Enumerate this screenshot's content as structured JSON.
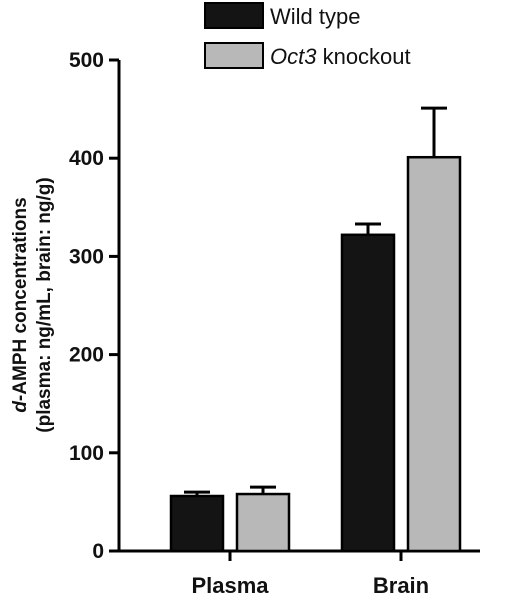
{
  "chart_data": {
    "type": "bar",
    "title": "",
    "xlabel": "",
    "ylabel_line1_prefix": "d",
    "ylabel_line1_rest": "-AMPH concentrations",
    "ylabel_line2": "(plasma: ng/mL, brain: ng/g)",
    "ylim": [
      0,
      500
    ],
    "yticks": [
      "0",
      "100",
      "200",
      "300",
      "400",
      "500"
    ],
    "ytick_values": [
      0,
      100,
      200,
      300,
      400,
      500
    ],
    "categories": [
      "Plasma",
      "Brain"
    ],
    "series": [
      {
        "legend_prefix": "",
        "legend_rest": "Wild type",
        "color": "#141414",
        "values": [
          56,
          322
        ],
        "errors": [
          4,
          11
        ]
      },
      {
        "legend_prefix": "Oct3",
        "legend_rest": " knockout",
        "color": "#b8b8b8",
        "values": [
          58,
          401
        ],
        "errors": [
          7,
          50
        ]
      }
    ],
    "grid": false,
    "legend_position": "top"
  }
}
